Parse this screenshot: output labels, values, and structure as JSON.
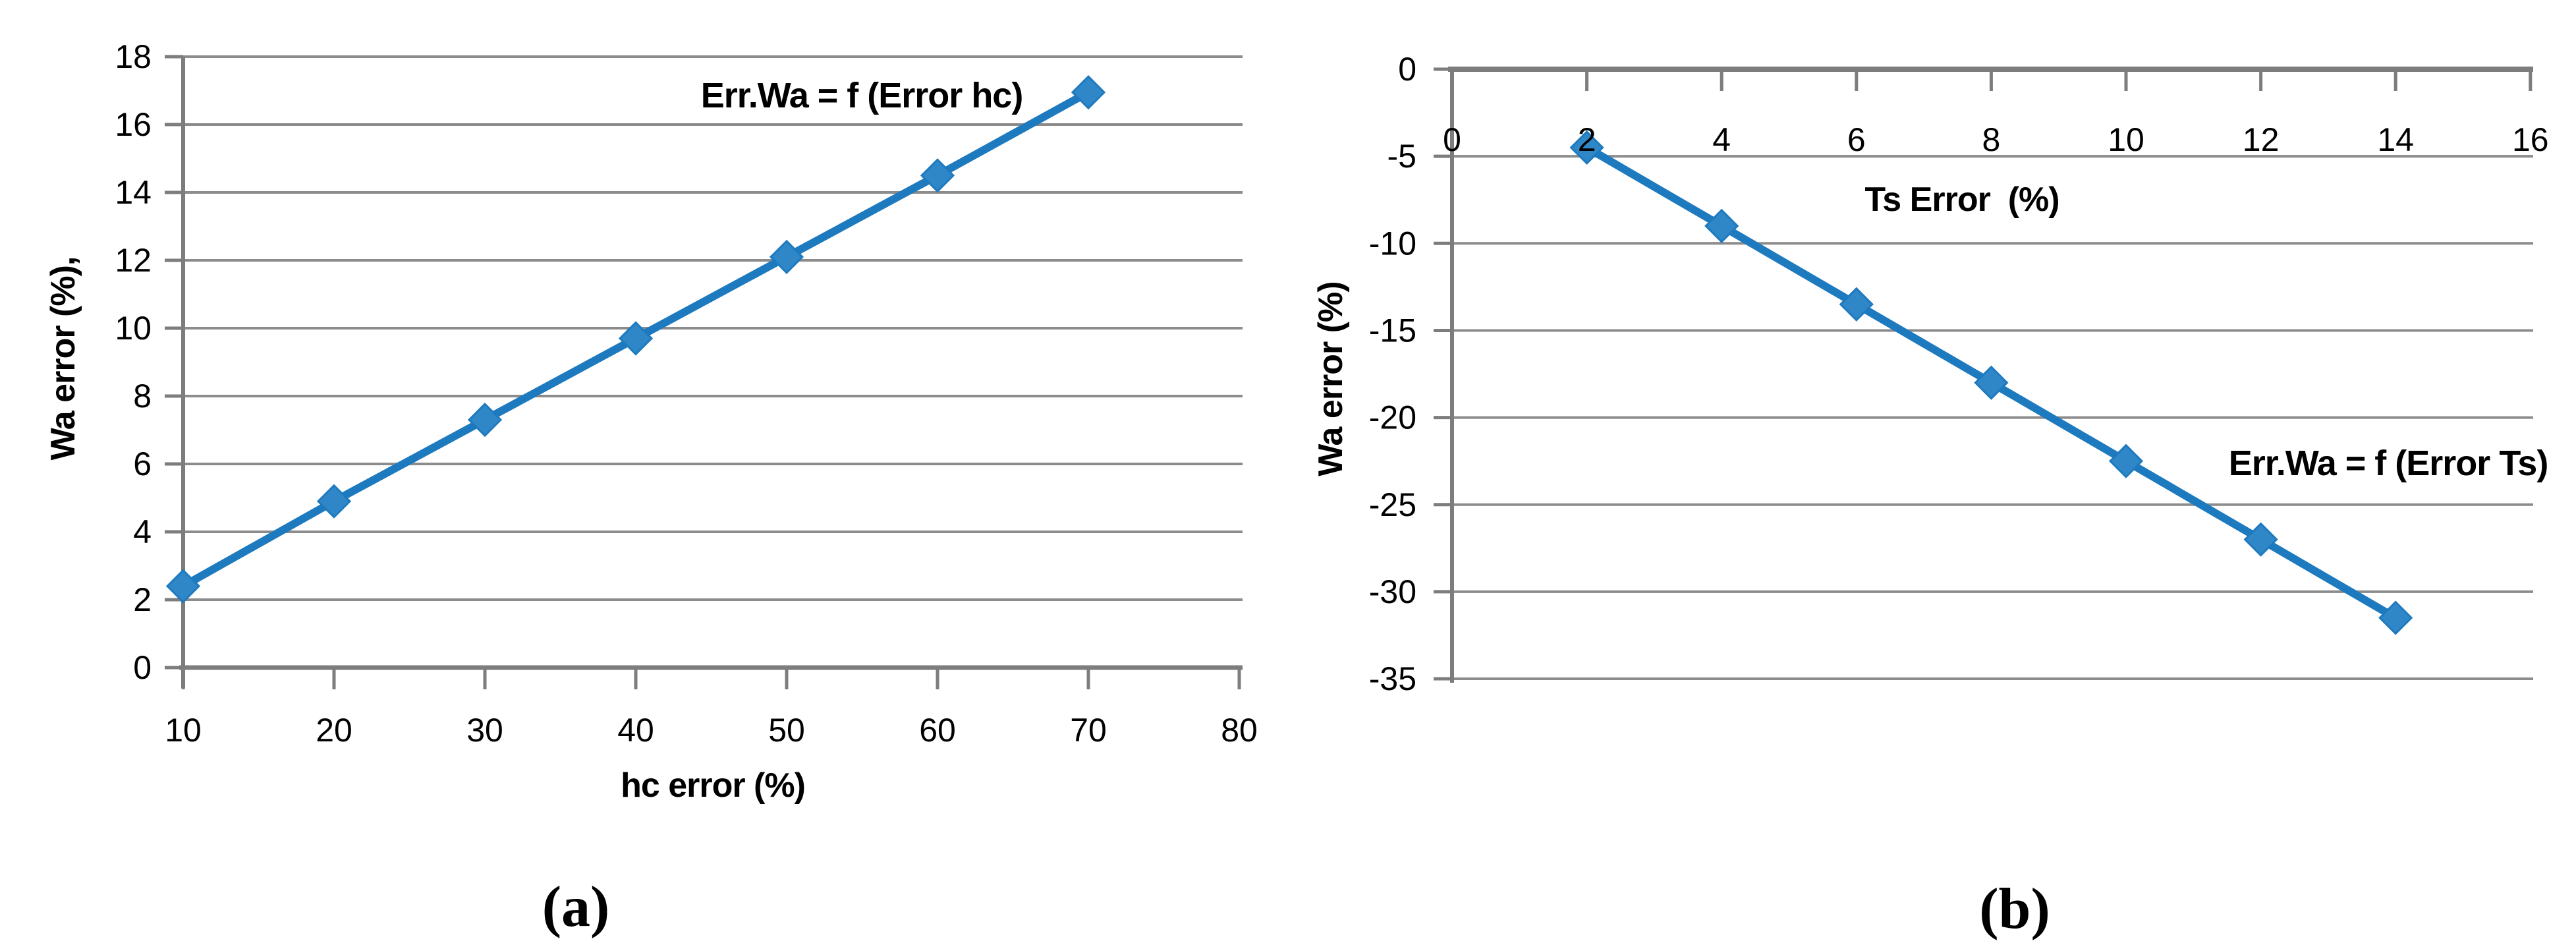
{
  "figure": {
    "background_color": "#FFFFFF",
    "grid_color": "#8C8C8C",
    "axis_color": "#7D7D7D",
    "text_color": "#000000",
    "series_color": "#1E7ABF",
    "marker_fill": "#2F87C8"
  },
  "chart_data": [
    {
      "panel": "a",
      "type": "line",
      "series_label": "Err.Wa = f (Error hc)",
      "xlabel": "hc error (%)",
      "ylabel": "Wa error (%),",
      "caption": "(a)",
      "x": [
        10,
        20,
        30,
        40,
        50,
        60,
        70
      ],
      "y": [
        2.4,
        4.9,
        7.3,
        9.7,
        12.1,
        14.5,
        16.95
      ],
      "xlim": [
        10,
        80
      ],
      "ylim": [
        0,
        18
      ],
      "x_ticks": [
        10,
        20,
        30,
        40,
        50,
        60,
        70,
        80
      ],
      "y_ticks": [
        0,
        2,
        4,
        6,
        8,
        10,
        12,
        14,
        16,
        18
      ],
      "x_axis_position": "bottom",
      "marker": "diamond",
      "grid": "horizontal",
      "legend": "none"
    },
    {
      "panel": "b",
      "type": "line",
      "series_label": "Err.Wa = f (Error Ts)",
      "xlabel": "Ts Error  (%)",
      "ylabel": "Wa error (%)",
      "caption": "(b)",
      "x": [
        2,
        4,
        6,
        8,
        10,
        12,
        14
      ],
      "y": [
        -4.5,
        -9,
        -13.5,
        -18,
        -22.5,
        -27,
        -31.5
      ],
      "xlim": [
        0,
        16
      ],
      "ylim": [
        -35,
        0
      ],
      "x_ticks": [
        0,
        2,
        4,
        6,
        8,
        10,
        12,
        14,
        16
      ],
      "y_ticks": [
        0,
        -5,
        -10,
        -15,
        -20,
        -25,
        -30,
        -35
      ],
      "x_axis_position": "top",
      "marker": "diamond",
      "grid": "horizontal",
      "legend": "none"
    }
  ]
}
